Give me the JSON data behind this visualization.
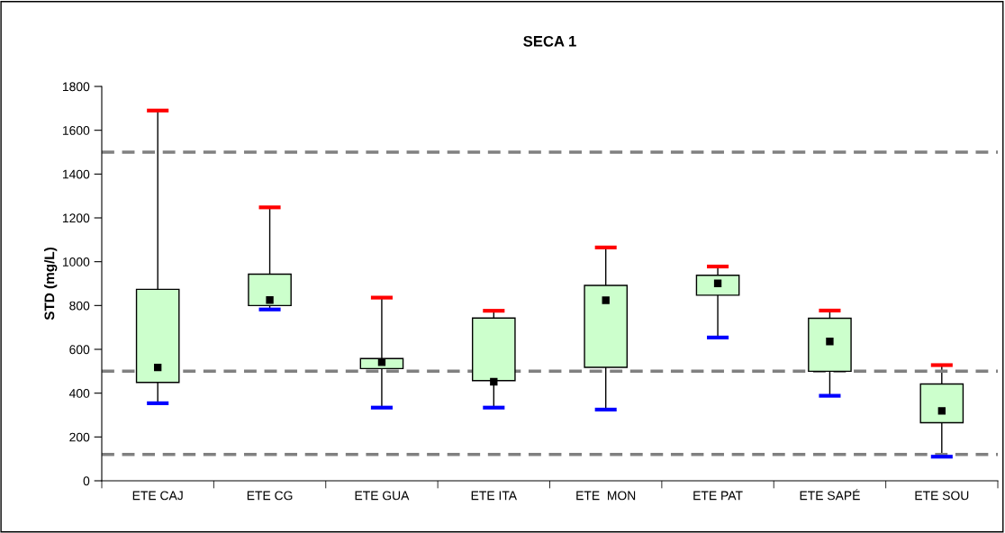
{
  "chart_data": {
    "type": "box",
    "title": "SECA 1",
    "ylabel": "STD (mg/L)",
    "categories": [
      "ETE CAJ",
      "ETE CG",
      "ETE GUA",
      "ETE ITA",
      "ETE  MON",
      "ETE PAT",
      "ETE SAPÉ",
      "ETE SOU"
    ],
    "series": [
      {
        "color": "#ccffcc",
        "boxes": [
          {
            "low": 354,
            "q1": 449,
            "median": 517,
            "q3": 874,
            "high": 1690
          },
          {
            "low": 782,
            "q1": 800,
            "median": 825,
            "q3": 943,
            "high": 1248
          },
          {
            "low": 334,
            "q1": 512,
            "median": 541,
            "q3": 558,
            "high": 836
          },
          {
            "low": 334,
            "q1": 457,
            "median": 457,
            "mean": 452,
            "q3": 743,
            "high": 776
          },
          {
            "low": 325,
            "q1": 518,
            "median": 824,
            "q3": 892,
            "high": 1065
          },
          {
            "low": 654,
            "q1": 847,
            "median": 901,
            "q3": 938,
            "high": 978
          },
          {
            "low": 388,
            "q1": 500,
            "median": 636,
            "q3": 742,
            "high": 777
          },
          {
            "low": 110,
            "q1": 265,
            "median": 319,
            "q3": 442,
            "high": 528
          }
        ]
      }
    ],
    "ylim": [
      0,
      1800
    ],
    "yticks": [
      0,
      200,
      400,
      600,
      800,
      1000,
      1200,
      1400,
      1600,
      1800
    ],
    "ref_lines": [
      {
        "axis": "y",
        "value": 1500,
        "color": "#808080",
        "line_style": "dashed"
      },
      {
        "axis": "y",
        "value": 500,
        "color": "#808080",
        "line_style": "dashed"
      },
      {
        "axis": "y",
        "value": 120,
        "color": "#808080",
        "line_style": "dashed"
      }
    ],
    "marker": "square",
    "grid": false,
    "legend": false
  }
}
